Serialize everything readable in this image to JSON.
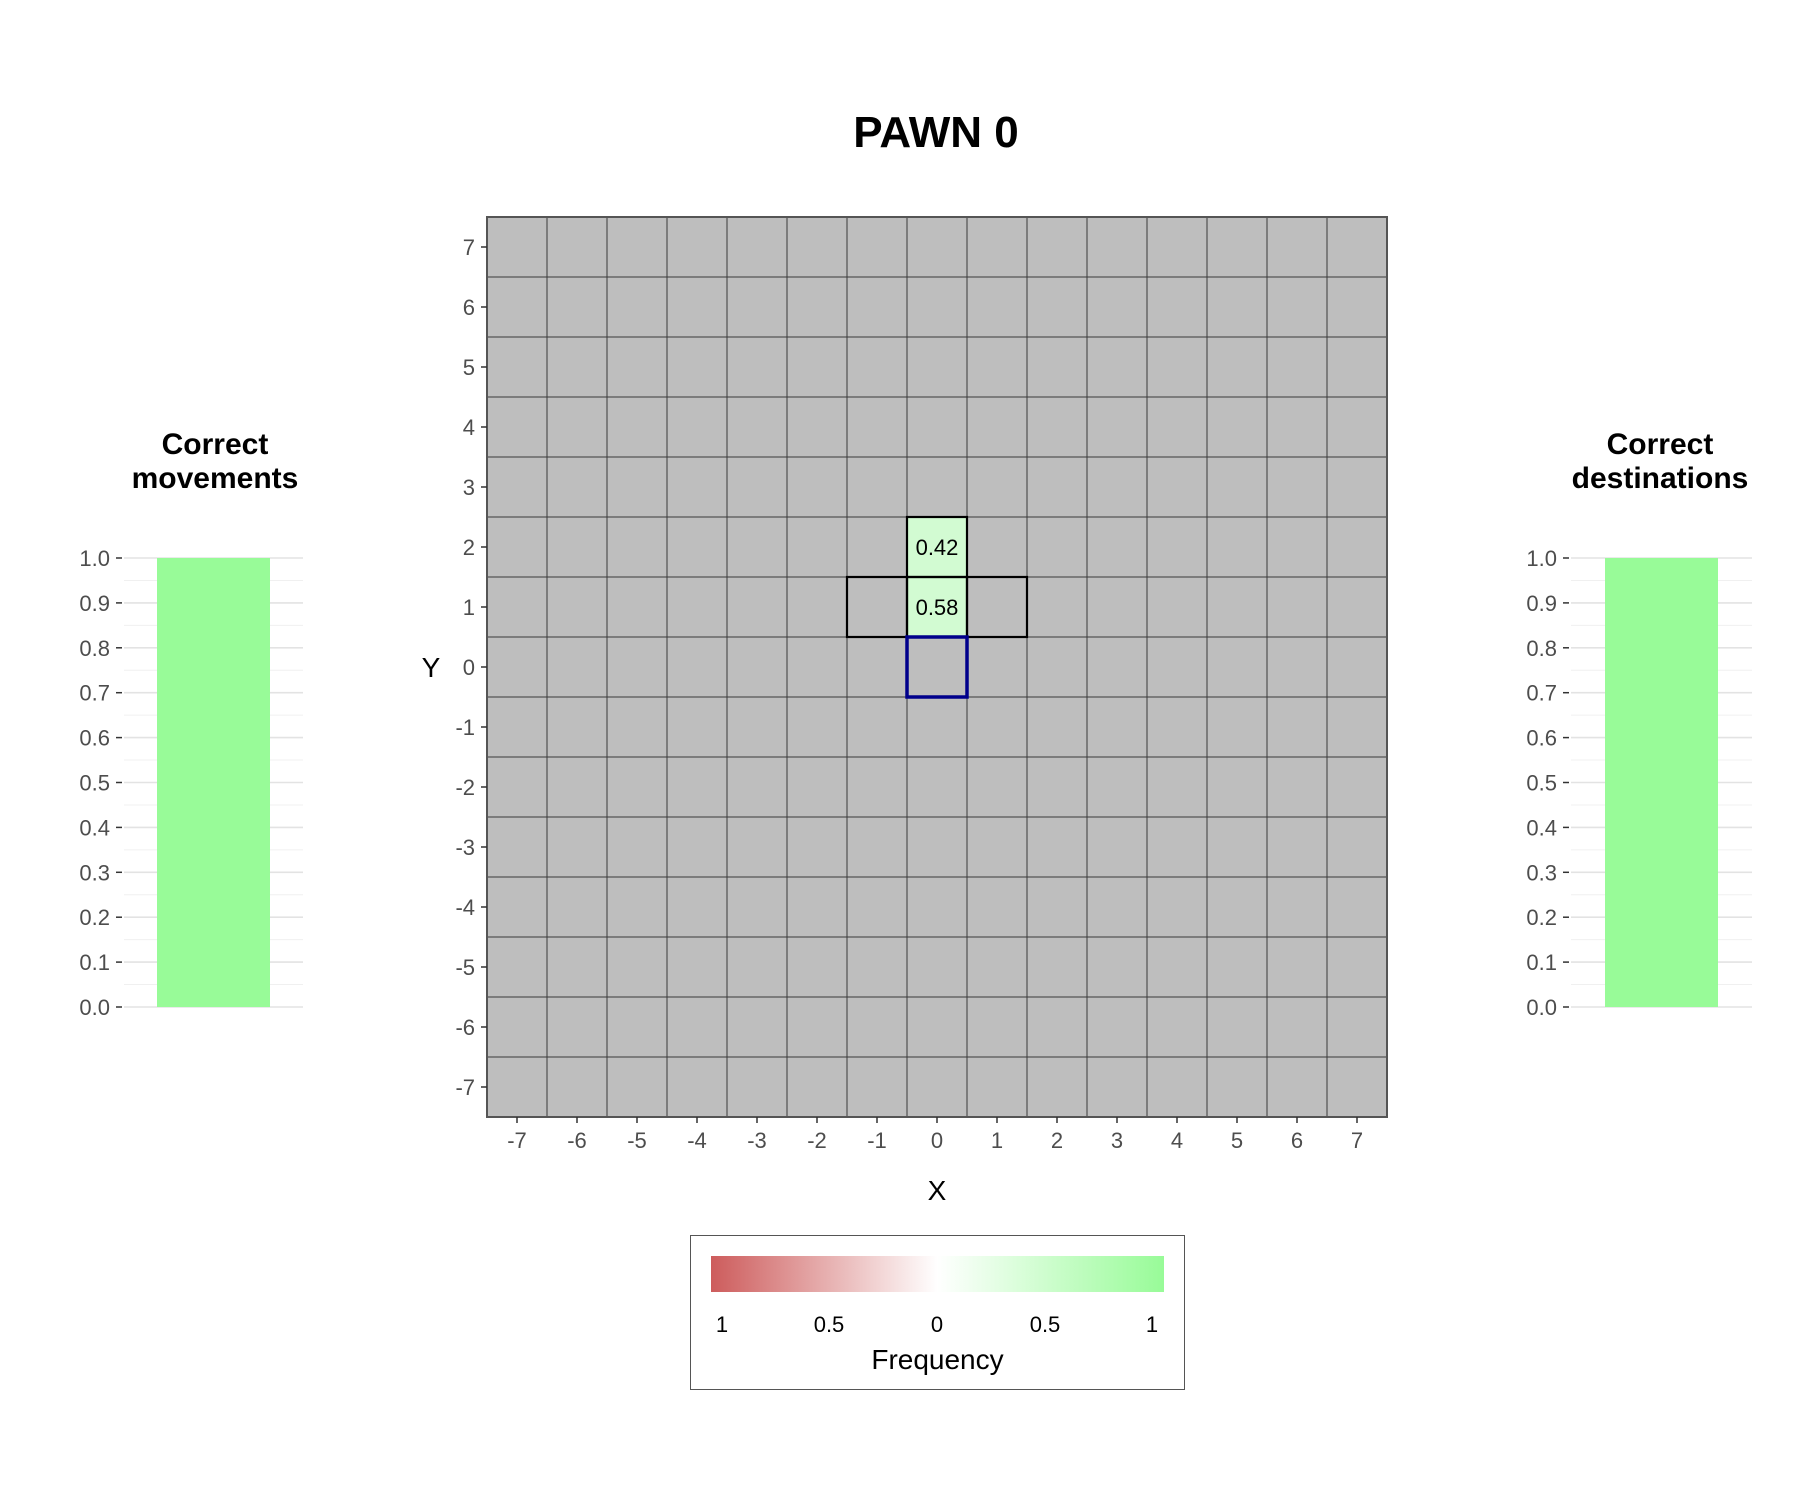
{
  "title": "PAWN 0",
  "left_panel": {
    "title": "Correct\nmovements"
  },
  "right_panel": {
    "title": "Correct\ndestinations"
  },
  "legend": {
    "title": "Frequency",
    "ticks": [
      "1",
      "0.5",
      "0",
      "0.5",
      "1"
    ],
    "colors": {
      "negative": "#cd5c5c",
      "mid": "#ffffff",
      "positive": "#98fb98"
    }
  },
  "colors": {
    "board": "#bebebe",
    "gridline": "#3a3a3a",
    "highlight_fill": "#d2fbd2",
    "origin_outline": "#00008b",
    "bar": "#98fb98"
  },
  "chart_data": [
    {
      "type": "heatmap",
      "xlabel": "X",
      "ylabel": "Y",
      "xlim": [
        -7,
        7
      ],
      "ylim": [
        -7,
        7
      ],
      "x_ticks": [
        "-7",
        "-6",
        "-5",
        "-4",
        "-3",
        "-2",
        "-1",
        "0",
        "1",
        "2",
        "3",
        "4",
        "5",
        "6",
        "7"
      ],
      "y_ticks": [
        "-7",
        "-6",
        "-5",
        "-4",
        "-3",
        "-2",
        "-1",
        "0",
        "1",
        "2",
        "3",
        "4",
        "5",
        "6",
        "7"
      ],
      "cells": [
        {
          "x": 0,
          "y": 2,
          "value": 0.42,
          "label": "0.42"
        },
        {
          "x": 0,
          "y": 1,
          "value": 0.58,
          "label": "0.58"
        }
      ],
      "legal_move_cells": [
        [
          0,
          2
        ],
        [
          -1,
          1
        ],
        [
          0,
          1
        ],
        [
          1,
          1
        ]
      ],
      "origin_cell": [
        0,
        0
      ],
      "grid": true
    },
    {
      "type": "bar",
      "title": "Correct\nmovements",
      "categories": [
        ""
      ],
      "values": [
        1.0
      ],
      "ylim": [
        0,
        1
      ],
      "y_ticks": [
        "0.0",
        "0.1",
        "0.2",
        "0.3",
        "0.4",
        "0.5",
        "0.6",
        "0.7",
        "0.8",
        "0.9",
        "1.0"
      ]
    },
    {
      "type": "bar",
      "title": "Correct\ndestinations",
      "categories": [
        ""
      ],
      "values": [
        1.0
      ],
      "ylim": [
        0,
        1
      ],
      "y_ticks": [
        "0.0",
        "0.1",
        "0.2",
        "0.3",
        "0.4",
        "0.5",
        "0.6",
        "0.7",
        "0.8",
        "0.9",
        "1.0"
      ]
    }
  ]
}
